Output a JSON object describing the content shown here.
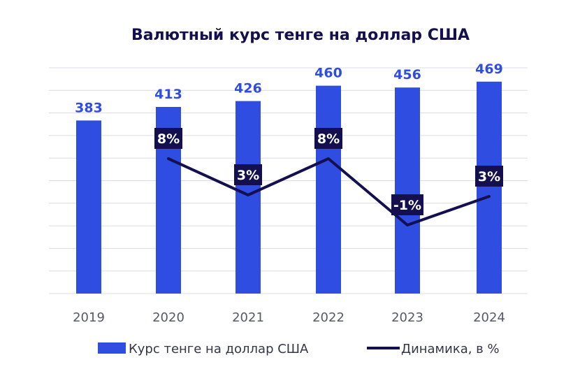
{
  "chart_data": {
    "type": "bar",
    "title": "Валютный курс тенге на доллар США",
    "categories": [
      "2019",
      "2020",
      "2021",
      "2022",
      "2023",
      "2024"
    ],
    "series": [
      {
        "name": "Курс тенге на доллар США",
        "type": "bar",
        "values": [
          383,
          413,
          426,
          460,
          456,
          469
        ],
        "labels": [
          "383",
          "413",
          "426",
          "460",
          "456",
          "469"
        ],
        "color": "#2f4de0"
      },
      {
        "name": "Динамика, в %",
        "type": "line",
        "values": [
          null,
          8,
          3,
          8,
          -1,
          3
        ],
        "labels": [
          "",
          "8%",
          "3%",
          "8%",
          "-1%",
          "3%"
        ],
        "color": "#14104f"
      }
    ],
    "grid": true,
    "legend": "bottom",
    "colors": {
      "bar": "#2f4de0",
      "line": "#14104f",
      "label_bg": "#14104f",
      "grid": "#d9dce3"
    }
  }
}
